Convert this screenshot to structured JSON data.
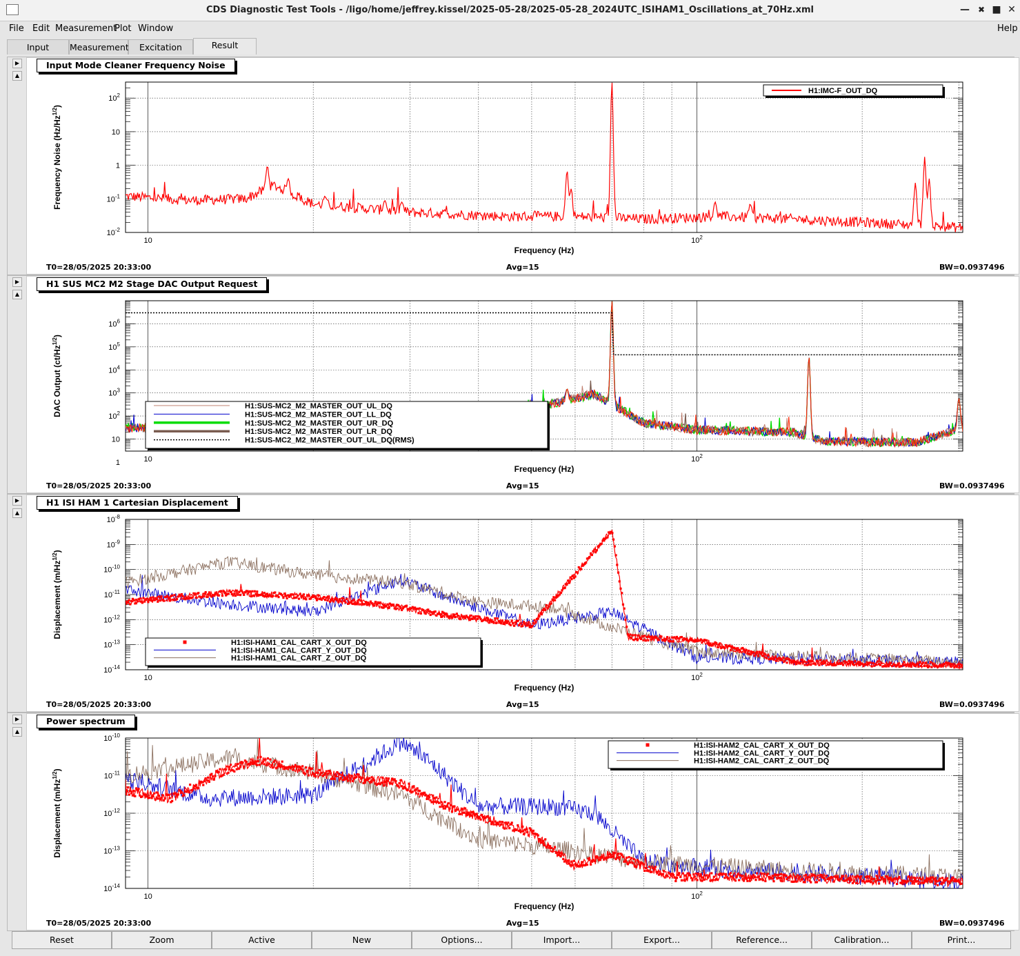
{
  "window": {
    "title": "CDS Diagnostic Test Tools - /ligo/home/jeffrey.kissel/2025-05-28/2025-05-28_2024UTC_ISIHAM1_Oscillations_at_70Hz.xml"
  },
  "menu": {
    "file": "File",
    "edit": "Edit",
    "measurement": "Measurement",
    "plot": "Plot",
    "window": "Window",
    "help": "Help"
  },
  "tabs": [
    "Input",
    "Measurement",
    "Excitation",
    "Result"
  ],
  "common": {
    "xlabel": "Frequency (Hz)",
    "t0": "T0=28/05/2025 20:33:00",
    "avg": "Avg=15",
    "bw": "BW=0.0937496",
    "xtick_10": "10",
    "xtick_100_base": "10",
    "xtick_100_exp": "2"
  },
  "colors": {
    "red": "#ff0000",
    "blue": "#0000cc",
    "brown": "#8b6f5e",
    "green": "#00dd00",
    "darkbrown": "#7a5c50",
    "grid": "#222222"
  },
  "chart_data": [
    {
      "type": "line",
      "title": "Input Mode Cleaner Frequency Noise",
      "xlabel": "Frequency (Hz)",
      "ylabel_main": "Frequency Noise (Hz/Hz",
      "ylabel_exp": "1/2",
      "ylabel_end": ")",
      "xscale": "log",
      "yscale": "log",
      "xlim": [
        9.1,
        305
      ],
      "ylim": [
        0.01,
        300
      ],
      "grid": true,
      "legend_position": "top-right",
      "yticks": [
        {
          "base": "10",
          "exp": "-2"
        },
        {
          "base": "10",
          "exp": "-1"
        },
        {
          "base": "1",
          "exp": ""
        },
        {
          "base": "10",
          "exp": ""
        },
        {
          "base": "10",
          "exp": "2"
        }
      ],
      "series": [
        {
          "name": "H1:IMC-F_OUT_DQ",
          "color": "#ff0000",
          "style": "line",
          "peaks": [
            [
              16.5,
              0.95
            ],
            [
              18,
              0.4
            ],
            [
              21,
              0.12
            ],
            [
              27,
              0.09
            ],
            [
              29,
              0.08
            ],
            [
              58,
              0.7
            ],
            [
              59,
              0.2
            ],
            [
              70,
              300
            ],
            [
              108,
              0.08
            ],
            [
              125,
              0.07
            ],
            [
              250,
              0.3
            ],
            [
              260,
              1.8
            ],
            [
              265,
              0.4
            ]
          ],
          "floor": [
            [
              9.1,
              0.12
            ],
            [
              12,
              0.09
            ],
            [
              15,
              0.1
            ],
            [
              17,
              0.25
            ],
            [
              20,
              0.07
            ],
            [
              30,
              0.04
            ],
            [
              45,
              0.03
            ],
            [
              60,
              0.03
            ],
            [
              80,
              0.025
            ],
            [
              110,
              0.03
            ],
            [
              150,
              0.025
            ],
            [
              200,
              0.02
            ],
            [
              305,
              0.014
            ]
          ]
        }
      ]
    },
    {
      "type": "line",
      "title": "H1 SUS MC2 M2 Stage DAC Output Request",
      "xlabel": "Frequency (Hz)",
      "ylabel_main": "DAC Output (ct/Hz",
      "ylabel_exp": "1/2",
      "ylabel_end": ")",
      "xscale": "log",
      "yscale": "log",
      "xlim": [
        9.1,
        305
      ],
      "ylim": [
        0.3,
        1000000
      ],
      "grid": true,
      "legend_position": "bottom-left",
      "yticks": [
        {
          "base": "1",
          "exp": ""
        },
        {
          "base": "10",
          "exp": ""
        },
        {
          "base": "10",
          "exp": "2"
        },
        {
          "base": "10",
          "exp": "3"
        },
        {
          "base": "10",
          "exp": "4"
        },
        {
          "base": "10",
          "exp": "5"
        },
        {
          "base": "10",
          "exp": "6"
        }
      ],
      "series": [
        {
          "name": "H1:SUS-MC2_M2_MASTER_OUT_UL_DQ",
          "color": "#c08070",
          "style": "line"
        },
        {
          "name": "H1:SUS-MC2_M2_MASTER_OUT_LL_DQ",
          "color": "#0000cc",
          "style": "line"
        },
        {
          "name": "H1:SUS-MC2_M2_MASTER_OUT_UR_DQ",
          "color": "#00dd00",
          "style": "thick"
        },
        {
          "name": "H1:SUS-MC2_M2_MASTER_OUT_LR_DQ",
          "color": "#7a5c50",
          "style": "thick"
        },
        {
          "name": "H1:SUS-MC2_M2_MASTER_OUT_UL_DQ(RMS)",
          "color": "#000000",
          "style": "dotted",
          "levels": [
            [
              9.1,
              300000
            ],
            [
              70,
              300000
            ],
            [
              70.5,
              4500
            ],
            [
              305,
              4500
            ]
          ]
        }
      ],
      "peaks": [
        [
          20,
          8
        ],
        [
          58,
          150
        ],
        [
          70,
          1000000
        ],
        [
          160,
          4000
        ],
        [
          300,
          60
        ]
      ],
      "floor": [
        [
          9.1,
          3
        ],
        [
          30,
          4
        ],
        [
          40,
          8
        ],
        [
          50,
          20
        ],
        [
          65,
          90
        ],
        [
          80,
          5
        ],
        [
          100,
          2.5
        ],
        [
          150,
          2
        ],
        [
          170,
          0.8
        ],
        [
          250,
          0.7
        ],
        [
          305,
          3
        ]
      ]
    },
    {
      "type": "line",
      "title": "H1 ISI HAM 1 Cartesian Displacement",
      "xlabel": "Frequency (Hz)",
      "ylabel_main": "Displacement (m/Hz",
      "ylabel_exp": "1/2",
      "ylabel_end": ")",
      "xscale": "log",
      "yscale": "log",
      "xlim": [
        9.1,
        305
      ],
      "ylim": [
        1e-14,
        1e-08
      ],
      "grid": true,
      "legend_position": "bottom-left",
      "yticks": [
        {
          "base": "10",
          "exp": "-14"
        },
        {
          "base": "10",
          "exp": "-13"
        },
        {
          "base": "10",
          "exp": "-12"
        },
        {
          "base": "10",
          "exp": "-11"
        },
        {
          "base": "10",
          "exp": "-10"
        },
        {
          "base": "10",
          "exp": "-9"
        },
        {
          "base": "10",
          "exp": "-8"
        }
      ],
      "series": [
        {
          "name": "H1:ISI-HAM1_CAL_CART_X_OUT_DQ",
          "color": "#ff0000",
          "style": "markers",
          "shape": [
            [
              9.1,
              5e-12
            ],
            [
              14,
              1.2e-11
            ],
            [
              20,
              8e-12
            ],
            [
              29,
              3e-12
            ],
            [
              35,
              1.5e-12
            ],
            [
              50,
              6e-13
            ],
            [
              70,
              3.5e-09
            ],
            [
              75,
              2e-13
            ],
            [
              100,
              1.5e-13
            ],
            [
              150,
              2e-14
            ],
            [
              305,
              1.5e-14
            ]
          ]
        },
        {
          "name": "H1:ISI-HAM1_CAL_CART_Y_OUT_DQ",
          "color": "#0000cc",
          "style": "line",
          "shape": [
            [
              9.1,
              1.5e-11
            ],
            [
              13,
              5e-12
            ],
            [
              20,
              2e-12
            ],
            [
              29,
              4e-11
            ],
            [
              35,
              8e-12
            ],
            [
              50,
              6e-13
            ],
            [
              70,
              2e-12
            ],
            [
              100,
              3e-14
            ],
            [
              305,
              2e-14
            ]
          ]
        },
        {
          "name": "H1:ISI-HAM1_CAL_CART_Z_OUT_DQ",
          "color": "#8b6f5e",
          "style": "line",
          "shape": [
            [
              9.1,
              3e-11
            ],
            [
              14,
              2e-10
            ],
            [
              20,
              6e-11
            ],
            [
              29,
              3e-11
            ],
            [
              40,
              5e-12
            ],
            [
              55,
              3e-12
            ],
            [
              70,
              5e-13
            ],
            [
              100,
              5e-14
            ],
            [
              305,
              2e-14
            ]
          ]
        }
      ]
    },
    {
      "type": "line",
      "title": "Power spectrum",
      "xlabel": "Frequency (Hz)",
      "ylabel_main": "Displacement (m/Hz",
      "ylabel_exp": "1/2",
      "ylabel_end": ")",
      "xscale": "log",
      "yscale": "log",
      "xlim": [
        9.1,
        305
      ],
      "ylim": [
        1e-14,
        1e-10
      ],
      "grid": true,
      "legend_position": "top-right",
      "yticks": [
        {
          "base": "10",
          "exp": "-14"
        },
        {
          "base": "10",
          "exp": "-13"
        },
        {
          "base": "10",
          "exp": "-12"
        },
        {
          "base": "10",
          "exp": "-11"
        },
        {
          "base": "10",
          "exp": "-10"
        }
      ],
      "series": [
        {
          "name": "H1:ISI-HAM2_CAL_CART_X_OUT_DQ",
          "color": "#ff0000",
          "style": "markers",
          "shape": [
            [
              9.1,
              4e-12
            ],
            [
              11,
              2.5e-12
            ],
            [
              14,
              1.5e-11
            ],
            [
              16,
              2.5e-11
            ],
            [
              20,
              1.2e-11
            ],
            [
              29,
              6e-12
            ],
            [
              35,
              1.5e-12
            ],
            [
              50,
              3e-13
            ],
            [
              60,
              4e-14
            ],
            [
              70,
              8e-14
            ],
            [
              90,
              2e-14
            ],
            [
              130,
              2e-14
            ],
            [
              305,
              1.5e-14
            ]
          ]
        },
        {
          "name": "H1:ISI-HAM2_CAL_CART_Y_OUT_DQ",
          "color": "#0000cc",
          "style": "line",
          "shape": [
            [
              9.1,
              8e-12
            ],
            [
              13,
              2.5e-12
            ],
            [
              20,
              3e-12
            ],
            [
              29,
              8e-11
            ],
            [
              33,
              2e-11
            ],
            [
              40,
              1.5e-12
            ],
            [
              55,
              1.5e-12
            ],
            [
              65,
              1e-12
            ],
            [
              80,
              5e-14
            ],
            [
              120,
              3e-14
            ],
            [
              305,
              1.5e-14
            ]
          ]
        },
        {
          "name": "H1:ISI-HAM2_CAL_CART_Z_OUT_DQ",
          "color": "#8b6f5e",
          "style": "line",
          "shape": [
            [
              9.1,
              1e-11
            ],
            [
              14,
              3e-11
            ],
            [
              20,
              1.2e-11
            ],
            [
              29,
              3e-12
            ],
            [
              40,
              2e-13
            ],
            [
              60,
              1e-13
            ],
            [
              80,
              5e-14
            ],
            [
              150,
              3e-14
            ],
            [
              305,
              2e-14
            ]
          ]
        }
      ]
    }
  ],
  "buttons": [
    "Reset",
    "Zoom",
    "Active",
    "New",
    "Options...",
    "Import...",
    "Export...",
    "Reference...",
    "Calibration...",
    "Print..."
  ]
}
